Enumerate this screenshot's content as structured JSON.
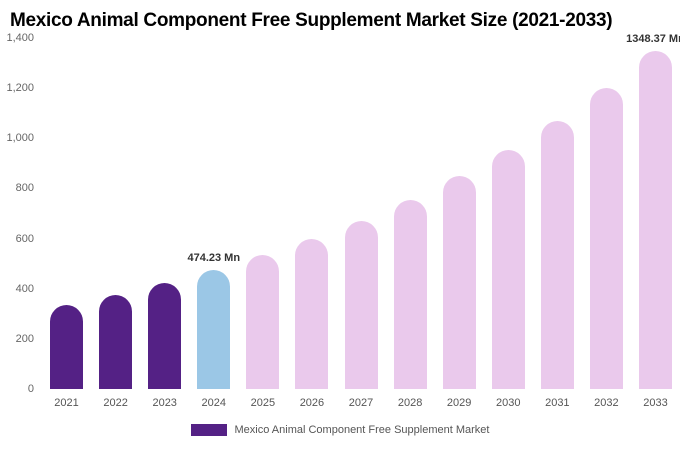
{
  "title": "Mexico Animal Component Free Supplement Market Size (2021-2033)",
  "legend": {
    "label": "Mexico Animal Component Free Supplement Market"
  },
  "colors": {
    "historical": "#542185",
    "highlight": "#9bc7e6",
    "forecast": "#eac9ec"
  },
  "chart_data": {
    "type": "bar",
    "title": "Mexico Animal Component Free Supplement Market Size (2021-2033)",
    "unit": "Mn",
    "categories": [
      "2021",
      "2022",
      "2023",
      "2024",
      "2025",
      "2026",
      "2027",
      "2028",
      "2029",
      "2030",
      "2031",
      "2032",
      "2033"
    ],
    "values": [
      335,
      376,
      422,
      474.23,
      533,
      598,
      672,
      755,
      848,
      952,
      1069,
      1201,
      1348.37
    ],
    "bar_colors": [
      "historical",
      "historical",
      "historical",
      "highlight",
      "forecast",
      "forecast",
      "forecast",
      "forecast",
      "forecast",
      "forecast",
      "forecast",
      "forecast",
      "forecast"
    ],
    "ylim": [
      0,
      1400
    ],
    "yticks": [
      "0",
      "200",
      "400",
      "600",
      "800",
      "1,000",
      "1,200",
      "1,400"
    ],
    "grid": false,
    "legend_position": "bottom",
    "annotations": [
      {
        "category": "2024",
        "text": "474.23 Mn"
      },
      {
        "category": "2033",
        "text": "1348.37 Mn"
      }
    ]
  }
}
